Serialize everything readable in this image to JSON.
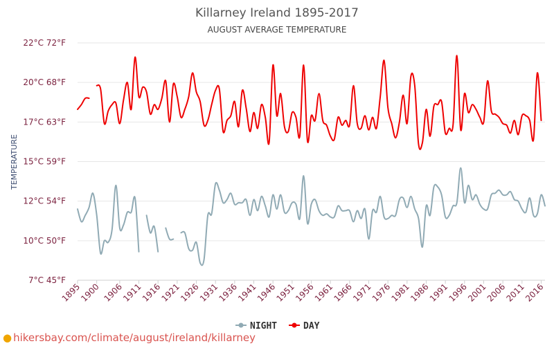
{
  "chart_data": {
    "type": "line",
    "title": "Killarney Ireland 1895-2017",
    "subtitle": "AUGUST AVERAGE TEMPERATURE",
    "ylabel": "TEMPERATURE",
    "y_ticks": [
      {
        "value": 7.5,
        "label": "7°C 45°F"
      },
      {
        "value": 10,
        "label": "10°C 50°F"
      },
      {
        "value": 12.5,
        "label": "12°C 54°F"
      },
      {
        "value": 15,
        "label": "15°C 59°F"
      },
      {
        "value": 17.5,
        "label": "17°C 63°F"
      },
      {
        "value": 20,
        "label": "20°C 68°F"
      },
      {
        "value": 22.5,
        "label": "22°C 72°F"
      }
    ],
    "ylim": [
      7.5,
      22.5
    ],
    "xlim": [
      1895,
      2017
    ],
    "x_ticks": [
      1895,
      1900,
      1906,
      1911,
      1916,
      1921,
      1926,
      1931,
      1936,
      1941,
      1946,
      1951,
      1956,
      1961,
      1966,
      1971,
      1976,
      1981,
      1986,
      1991,
      1996,
      2001,
      2006,
      2011,
      2016
    ],
    "grid": "horizontal",
    "legend_position": "bottom",
    "series": [
      {
        "name": "NIGHT",
        "color": "#90aab4",
        "points": [
          [
            1895,
            12.0
          ],
          [
            1896,
            11.2
          ],
          [
            1897,
            11.6
          ],
          [
            1898,
            12.1
          ],
          [
            1899,
            13.0
          ],
          [
            1900,
            11.6
          ],
          [
            1901,
            9.2
          ],
          [
            1902,
            10.0
          ],
          [
            1903,
            9.9
          ],
          [
            1904,
            10.7
          ],
          [
            1905,
            13.5
          ],
          [
            1906,
            10.8
          ],
          [
            1907,
            11.0
          ],
          [
            1908,
            11.8
          ],
          [
            1909,
            11.8
          ],
          [
            1910,
            12.7
          ],
          [
            1911,
            9.3
          ],
          [
            1913,
            11.6
          ],
          [
            1914,
            10.5
          ],
          [
            1915,
            10.9
          ],
          [
            1916,
            9.3
          ],
          [
            1918,
            10.8
          ],
          [
            1919,
            10.1
          ],
          [
            1920,
            10.1
          ],
          [
            1922,
            10.5
          ],
          [
            1923,
            10.5
          ],
          [
            1924,
            9.5
          ],
          [
            1925,
            9.4
          ],
          [
            1926,
            9.9
          ],
          [
            1927,
            8.6
          ],
          [
            1928,
            8.8
          ],
          [
            1929,
            11.6
          ],
          [
            1930,
            11.7
          ],
          [
            1931,
            13.6
          ],
          [
            1932,
            13.2
          ],
          [
            1933,
            12.4
          ],
          [
            1934,
            12.6
          ],
          [
            1935,
            13.0
          ],
          [
            1936,
            12.3
          ],
          [
            1937,
            12.4
          ],
          [
            1938,
            12.4
          ],
          [
            1939,
            12.6
          ],
          [
            1940,
            11.6
          ],
          [
            1941,
            12.6
          ],
          [
            1942,
            11.9
          ],
          [
            1943,
            12.8
          ],
          [
            1944,
            12.2
          ],
          [
            1945,
            11.5
          ],
          [
            1946,
            12.9
          ],
          [
            1947,
            12.0
          ],
          [
            1948,
            12.9
          ],
          [
            1949,
            11.8
          ],
          [
            1950,
            11.9
          ],
          [
            1951,
            12.4
          ],
          [
            1952,
            12.3
          ],
          [
            1953,
            11.4
          ],
          [
            1954,
            14.1
          ],
          [
            1955,
            11.1
          ],
          [
            1956,
            12.3
          ],
          [
            1957,
            12.6
          ],
          [
            1958,
            11.9
          ],
          [
            1959,
            11.6
          ],
          [
            1960,
            11.7
          ],
          [
            1961,
            11.5
          ],
          [
            1962,
            11.5
          ],
          [
            1963,
            12.2
          ],
          [
            1964,
            11.9
          ],
          [
            1965,
            11.9
          ],
          [
            1966,
            11.9
          ],
          [
            1967,
            11.2
          ],
          [
            1968,
            11.9
          ],
          [
            1969,
            11.4
          ],
          [
            1970,
            12.0
          ],
          [
            1971,
            10.1
          ],
          [
            1972,
            11.9
          ],
          [
            1973,
            11.8
          ],
          [
            1974,
            12.8
          ],
          [
            1975,
            11.5
          ],
          [
            1976,
            11.4
          ],
          [
            1977,
            11.6
          ],
          [
            1978,
            11.6
          ],
          [
            1979,
            12.6
          ],
          [
            1980,
            12.7
          ],
          [
            1981,
            12.1
          ],
          [
            1982,
            12.8
          ],
          [
            1983,
            12.0
          ],
          [
            1984,
            11.4
          ],
          [
            1985,
            9.6
          ],
          [
            1986,
            12.2
          ],
          [
            1987,
            11.6
          ],
          [
            1988,
            13.4
          ],
          [
            1989,
            13.4
          ],
          [
            1990,
            12.9
          ],
          [
            1991,
            11.5
          ],
          [
            1992,
            11.6
          ],
          [
            1993,
            12.2
          ],
          [
            1994,
            12.4
          ],
          [
            1995,
            14.6
          ],
          [
            1996,
            12.4
          ],
          [
            1997,
            13.5
          ],
          [
            1998,
            12.6
          ],
          [
            1999,
            12.9
          ],
          [
            2000,
            12.3
          ],
          [
            2001,
            12.0
          ],
          [
            2002,
            12.0
          ],
          [
            2003,
            12.9
          ],
          [
            2004,
            13.0
          ],
          [
            2005,
            13.2
          ],
          [
            2006,
            12.9
          ],
          [
            2007,
            12.9
          ],
          [
            2008,
            13.1
          ],
          [
            2009,
            12.6
          ],
          [
            2010,
            12.5
          ],
          [
            2011,
            12.0
          ],
          [
            2012,
            11.8
          ],
          [
            2013,
            12.7
          ],
          [
            2014,
            11.6
          ],
          [
            2015,
            11.7
          ],
          [
            2016,
            12.9
          ],
          [
            2017,
            12.2
          ]
        ]
      },
      {
        "name": "DAY",
        "color": "#ee0000",
        "points": [
          [
            1895,
            18.3
          ],
          [
            1896,
            18.6
          ],
          [
            1897,
            19.0
          ],
          [
            1898,
            19.0
          ],
          [
            1900,
            19.8
          ],
          [
            1901,
            19.6
          ],
          [
            1902,
            17.4
          ],
          [
            1903,
            18.2
          ],
          [
            1904,
            18.6
          ],
          [
            1905,
            18.7
          ],
          [
            1906,
            17.4
          ],
          [
            1907,
            18.9
          ],
          [
            1908,
            20.0
          ],
          [
            1909,
            18.3
          ],
          [
            1910,
            21.6
          ],
          [
            1911,
            19.1
          ],
          [
            1912,
            19.7
          ],
          [
            1913,
            19.4
          ],
          [
            1914,
            18.0
          ],
          [
            1915,
            18.6
          ],
          [
            1916,
            18.3
          ],
          [
            1917,
            19.0
          ],
          [
            1918,
            20.1
          ],
          [
            1919,
            17.5
          ],
          [
            1920,
            19.9
          ],
          [
            1921,
            19.1
          ],
          [
            1922,
            17.8
          ],
          [
            1923,
            18.3
          ],
          [
            1924,
            19.1
          ],
          [
            1925,
            20.6
          ],
          [
            1926,
            19.4
          ],
          [
            1927,
            18.8
          ],
          [
            1928,
            17.3
          ],
          [
            1929,
            17.6
          ],
          [
            1930,
            18.6
          ],
          [
            1931,
            19.5
          ],
          [
            1932,
            19.6
          ],
          [
            1933,
            16.9
          ],
          [
            1934,
            17.6
          ],
          [
            1935,
            17.9
          ],
          [
            1936,
            18.8
          ],
          [
            1937,
            17.2
          ],
          [
            1938,
            19.5
          ],
          [
            1939,
            18.4
          ],
          [
            1940,
            16.9
          ],
          [
            1941,
            18.1
          ],
          [
            1942,
            17.1
          ],
          [
            1943,
            18.6
          ],
          [
            1944,
            17.8
          ],
          [
            1945,
            16.2
          ],
          [
            1946,
            21.1
          ],
          [
            1947,
            17.9
          ],
          [
            1948,
            19.3
          ],
          [
            1949,
            17.2
          ],
          [
            1950,
            16.9
          ],
          [
            1951,
            18.1
          ],
          [
            1952,
            17.8
          ],
          [
            1953,
            16.6
          ],
          [
            1954,
            21.1
          ],
          [
            1955,
            16.3
          ],
          [
            1956,
            17.9
          ],
          [
            1957,
            17.6
          ],
          [
            1958,
            19.3
          ],
          [
            1959,
            17.6
          ],
          [
            1960,
            17.3
          ],
          [
            1961,
            16.6
          ],
          [
            1962,
            16.4
          ],
          [
            1963,
            17.8
          ],
          [
            1964,
            17.3
          ],
          [
            1965,
            17.6
          ],
          [
            1966,
            17.3
          ],
          [
            1967,
            19.8
          ],
          [
            1968,
            17.4
          ],
          [
            1969,
            17.1
          ],
          [
            1970,
            17.9
          ],
          [
            1971,
            17.0
          ],
          [
            1972,
            17.8
          ],
          [
            1973,
            17.1
          ],
          [
            1974,
            19.1
          ],
          [
            1975,
            21.4
          ],
          [
            1976,
            18.4
          ],
          [
            1977,
            17.4
          ],
          [
            1978,
            16.5
          ],
          [
            1979,
            17.5
          ],
          [
            1980,
            19.2
          ],
          [
            1981,
            17.4
          ],
          [
            1982,
            20.4
          ],
          [
            1983,
            19.8
          ],
          [
            1984,
            16.1
          ],
          [
            1985,
            16.2
          ],
          [
            1986,
            18.3
          ],
          [
            1987,
            16.6
          ],
          [
            1988,
            18.5
          ],
          [
            1989,
            18.6
          ],
          [
            1990,
            18.8
          ],
          [
            1991,
            16.8
          ],
          [
            1992,
            17.1
          ],
          [
            1993,
            17.3
          ],
          [
            1994,
            21.7
          ],
          [
            1995,
            17.0
          ],
          [
            1996,
            19.3
          ],
          [
            1997,
            18.1
          ],
          [
            1998,
            18.6
          ],
          [
            1999,
            18.3
          ],
          [
            2000,
            17.8
          ],
          [
            2001,
            17.5
          ],
          [
            2002,
            20.1
          ],
          [
            2003,
            18.2
          ],
          [
            2004,
            18.0
          ],
          [
            2005,
            17.8
          ],
          [
            2006,
            17.4
          ],
          [
            2007,
            17.3
          ],
          [
            2008,
            16.8
          ],
          [
            2009,
            17.6
          ],
          [
            2010,
            16.7
          ],
          [
            2011,
            17.9
          ],
          [
            2012,
            17.9
          ],
          [
            2013,
            17.6
          ],
          [
            2014,
            16.4
          ],
          [
            2015,
            20.6
          ],
          [
            2016,
            17.6
          ]
        ]
      }
    ]
  },
  "watermark": "hikersbay.com/climate/august/ireland/killarney"
}
